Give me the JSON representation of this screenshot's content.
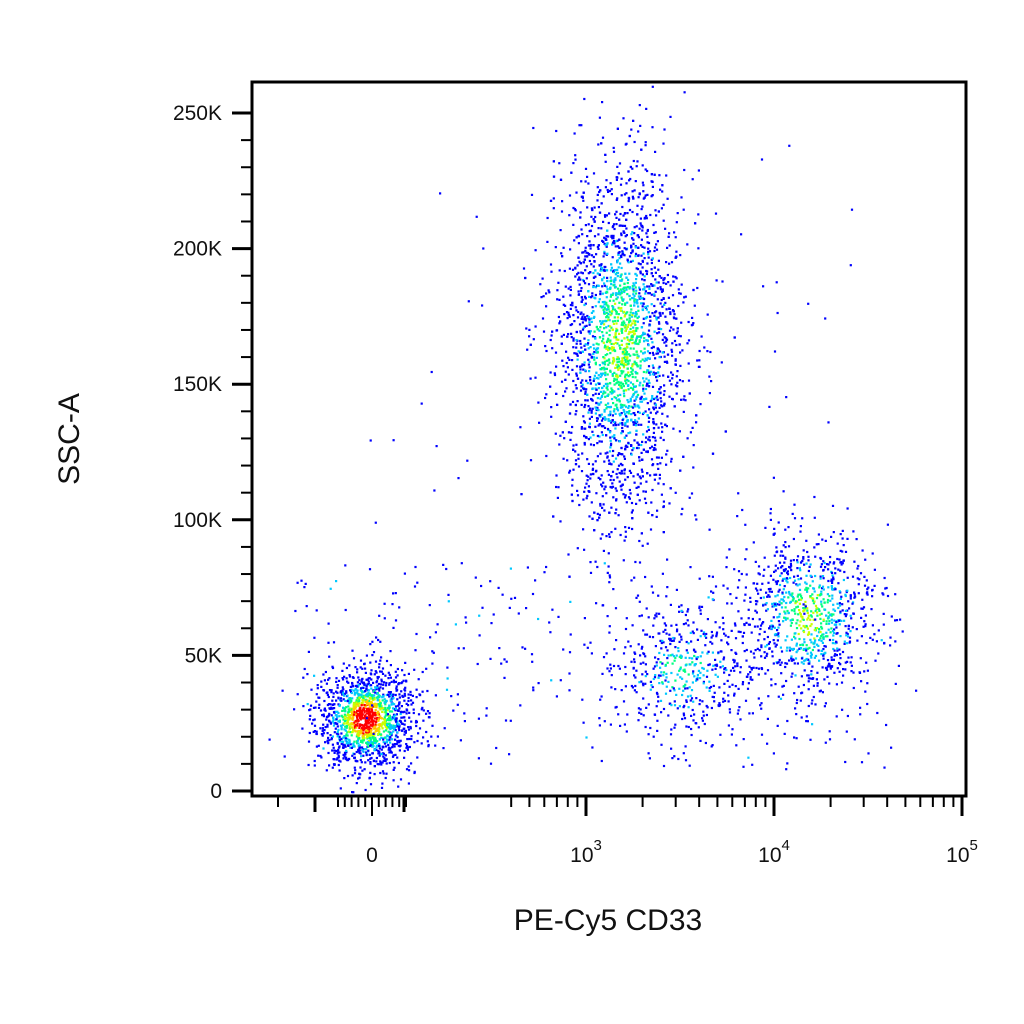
{
  "chart_data": {
    "type": "scatter",
    "subtype": "flow-cytometry-density-dot-plot",
    "xlabel": "PE-Cy5 CD33",
    "ylabel": "SSC-A",
    "x_scale": "biexponential",
    "y_scale": "linear",
    "ylim": [
      0,
      262144
    ],
    "y_ticks": [
      {
        "value": 0,
        "label": "0"
      },
      {
        "value": 50000,
        "label": "50K"
      },
      {
        "value": 100000,
        "label": "100K"
      },
      {
        "value": 150000,
        "label": "150K"
      },
      {
        "value": 200000,
        "label": "200K"
      },
      {
        "value": 250000,
        "label": "250K"
      }
    ],
    "x_ticks": [
      {
        "value": 0,
        "base": "0",
        "exp": ""
      },
      {
        "value": 1000,
        "base": "10",
        "exp": "3"
      },
      {
        "value": 10000,
        "base": "10",
        "exp": "4"
      },
      {
        "value": 100000,
        "base": "10",
        "exp": "5"
      }
    ],
    "grid": false,
    "legend": "none",
    "color_scale": [
      "#0000ff",
      "#00c8ff",
      "#00ff80",
      "#c8ff00",
      "#ffcc00",
      "#ff0000"
    ],
    "populations": [
      {
        "x_center": 0,
        "y_center": 27000,
        "x_spread_log": 0.0,
        "y_spread": 9000,
        "count": 1500,
        "density": "high"
      },
      {
        "x_center": 1500,
        "y_center": 165000,
        "x_spread_log": 0.17,
        "y_spread": 32000,
        "count": 2600,
        "density": "medium"
      },
      {
        "x_center": 15000,
        "y_center": 65000,
        "x_spread_log": 0.18,
        "y_spread": 16000,
        "count": 900,
        "density": "medium"
      },
      {
        "x_center": 3200,
        "y_center": 45000,
        "x_spread_log": 0.2,
        "y_spread": 12000,
        "count": 450,
        "density": "low"
      }
    ]
  }
}
